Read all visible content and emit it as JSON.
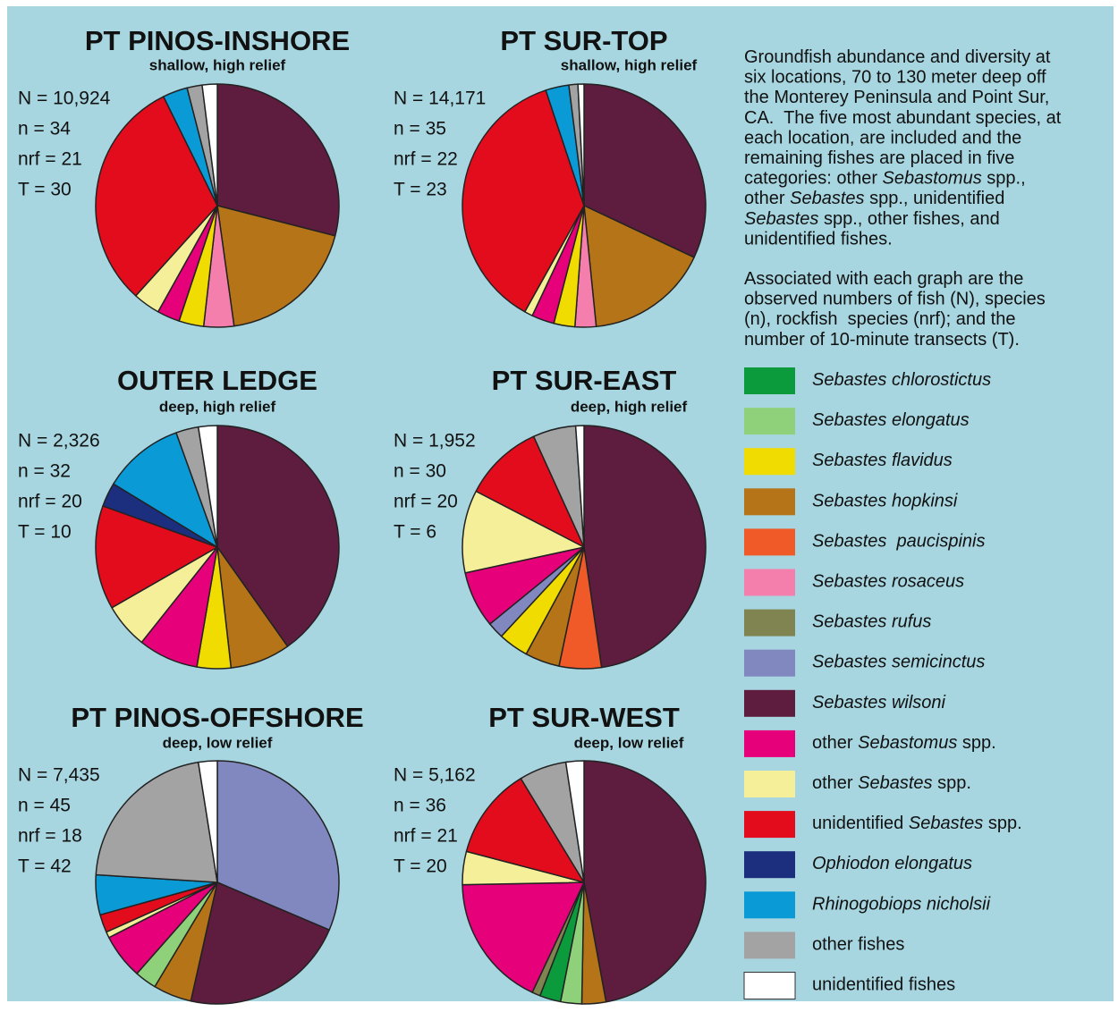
{
  "chart_data": [
    {
      "type": "pie",
      "title": "PT PINOS-INSHORE",
      "subtitle": "shallow, high relief",
      "stats": [
        "N = 10,924",
        "n = 34",
        "nrf = 21",
        "T = 30"
      ],
      "values": [
        29,
        18.8,
        4,
        3.3,
        3,
        3.6,
        31,
        3.3,
        2,
        2
      ],
      "colors": [
        "#5e1c3f",
        "#b47417",
        "#f57fac",
        "#f0dc00",
        "#e6007a",
        "#f5ef9a",
        "#e30c1c",
        "#0a9ad6",
        "#a3a3a3",
        "#ffffff"
      ]
    },
    {
      "type": "pie",
      "title": "PT SUR-TOP",
      "subtitle": "shallow, high relief",
      "stats": [
        "N = 14,171",
        "n = 35",
        "nrf = 22",
        "T = 23"
      ],
      "values": [
        32,
        16.4,
        2.8,
        2.8,
        3,
        1.1,
        36.8,
        3.1,
        1.2,
        0.8
      ],
      "colors": [
        "#5e1c3f",
        "#b47417",
        "#f57fac",
        "#f0dc00",
        "#e6007a",
        "#f5ef9a",
        "#e30c1c",
        "#0a9ad6",
        "#a3a3a3",
        "#ffffff"
      ]
    },
    {
      "type": "pie",
      "title": "OUTER LEDGE",
      "subtitle": "deep, high relief",
      "stats": [
        "N = 2,326",
        "n = 32",
        "nrf = 20",
        "T = 10"
      ],
      "values": [
        40.2,
        8,
        4.5,
        8,
        6,
        13.8,
        3.2,
        10.8,
        3,
        2.5
      ],
      "colors": [
        "#5e1c3f",
        "#b47417",
        "#f0dc00",
        "#e6007a",
        "#f5ef9a",
        "#e30c1c",
        "#1c2f7f",
        "#0a9ad6",
        "#a3a3a3",
        "#ffffff"
      ]
    },
    {
      "type": "pie",
      "title": "PT SUR-EAST",
      "subtitle": "deep, high relief",
      "stats": [
        "N = 1,952",
        "n = 30",
        "nrf = 20",
        "T = 6"
      ],
      "values": [
        47.7,
        5.6,
        4.6,
        4,
        2.2,
        7.5,
        11,
        10.6,
        5.7,
        1.1
      ],
      "colors": [
        "#5e1c3f",
        "#f05a28",
        "#b47417",
        "#f0dc00",
        "#8088bf",
        "#e6007a",
        "#f5ef9a",
        "#e30c1c",
        "#a3a3a3",
        "#ffffff"
      ]
    },
    {
      "type": "pie",
      "title": "PT PINOS-OFFSHORE",
      "subtitle": "deep, low relief",
      "stats": [
        "N = 7,435",
        "n = 45",
        "nrf = 18",
        "T = 42"
      ],
      "values": [
        31.4,
        22.1,
        5.1,
        2.9,
        6,
        0.8,
        2.4,
        5.3,
        21.5,
        2.5
      ],
      "colors": [
        "#8088bf",
        "#5e1c3f",
        "#b47417",
        "#8fd17a",
        "#e6007a",
        "#f5ef9a",
        "#e30c1c",
        "#0a9ad6",
        "#a3a3a3",
        "#ffffff"
      ]
    },
    {
      "type": "pie",
      "title": "PT SUR-WEST",
      "subtitle": "deep, low relief",
      "stats": [
        "N = 5,162",
        "n = 36",
        "nrf = 21",
        "T = 20"
      ],
      "values": [
        47.1,
        3.2,
        2.8,
        2.8,
        1.1,
        17.7,
        4.4,
        12.2,
        6.3,
        2.4
      ],
      "colors": [
        "#5e1c3f",
        "#b47417",
        "#8fd17a",
        "#0b9a3c",
        "#7f8450",
        "#e6007a",
        "#f5ef9a",
        "#e30c1c",
        "#a3a3a3",
        "#ffffff"
      ]
    }
  ],
  "description": {
    "paragraphs": [
      [
        [
          {
            "text": "Groundfish abundance and diversity at"
          }
        ],
        [
          {
            "text": "six locations, 70 to 130 meter deep off"
          }
        ],
        [
          {
            "text": "the Monterey Peninsula and Point Sur,"
          }
        ],
        [
          {
            "text": "CA.  The five most abundant species, at"
          }
        ],
        [
          {
            "text": "each location, are included and the"
          }
        ],
        [
          {
            "text": "remaining fishes are placed in five"
          }
        ],
        [
          {
            "text": "categories: other "
          },
          {
            "text": "Sebastomus",
            "italic": true
          },
          {
            "text": " spp.,"
          }
        ],
        [
          {
            "text": "other "
          },
          {
            "text": "Sebastes",
            "italic": true
          },
          {
            "text": " spp., unidentified"
          }
        ],
        [
          {
            "text": "Sebastes",
            "italic": true
          },
          {
            "text": " spp., other fishes, and"
          }
        ],
        [
          {
            "text": "unidentified fishes."
          }
        ]
      ],
      [
        [
          {
            "text": "Associated with each graph are the"
          }
        ],
        [
          {
            "text": "observed numbers of fish (N), species"
          }
        ],
        [
          {
            "text": "(n), rockfish  species (nrf); and the"
          }
        ],
        [
          {
            "text": "number of 10-minute transects (T)."
          }
        ]
      ]
    ]
  },
  "legend": {
    "items": [
      {
        "color": "#0b9a3c",
        "label": [
          {
            "text": "Sebastes chlorostictus",
            "italic": true
          }
        ]
      },
      {
        "color": "#8fd17a",
        "label": [
          {
            "text": "Sebastes elongatus",
            "italic": true
          }
        ]
      },
      {
        "color": "#f0dc00",
        "label": [
          {
            "text": "Sebastes flavidus",
            "italic": true
          }
        ]
      },
      {
        "color": "#b47417",
        "label": [
          {
            "text": "Sebastes hopkinsi",
            "italic": true
          }
        ]
      },
      {
        "color": "#f05a28",
        "label": [
          {
            "text": "Sebastes  paucispinis",
            "italic": true
          }
        ]
      },
      {
        "color": "#f57fac",
        "label": [
          {
            "text": "Sebastes rosaceus",
            "italic": true
          }
        ]
      },
      {
        "color": "#7f8450",
        "label": [
          {
            "text": "Sebastes rufus",
            "italic": true
          }
        ]
      },
      {
        "color": "#8088bf",
        "label": [
          {
            "text": "Sebastes semicinctus",
            "italic": true
          }
        ]
      },
      {
        "color": "#5e1c3f",
        "label": [
          {
            "text": "Sebastes wilsoni",
            "italic": true
          }
        ]
      },
      {
        "color": "#e6007a",
        "label": [
          {
            "text": "other "
          },
          {
            "text": "Sebastomus",
            "italic": true
          },
          {
            "text": " spp."
          }
        ]
      },
      {
        "color": "#f5ef9a",
        "label": [
          {
            "text": "other "
          },
          {
            "text": "Sebastes",
            "italic": true
          },
          {
            "text": " spp."
          }
        ]
      },
      {
        "color": "#e30c1c",
        "label": [
          {
            "text": "unidentified "
          },
          {
            "text": "Sebastes",
            "italic": true
          },
          {
            "text": " spp."
          }
        ]
      },
      {
        "color": "#1c2f7f",
        "label": [
          {
            "text": "Ophiodon elongatus",
            "italic": true
          }
        ]
      },
      {
        "color": "#0a9ad6",
        "label": [
          {
            "text": "Rhinogobiops nicholsii",
            "italic": true
          }
        ]
      },
      {
        "color": "#a3a3a3",
        "label": [
          {
            "text": "other fishes"
          }
        ]
      },
      {
        "color": "#ffffff",
        "label": [
          {
            "text": "unidentified fishes"
          }
        ]
      }
    ]
  }
}
